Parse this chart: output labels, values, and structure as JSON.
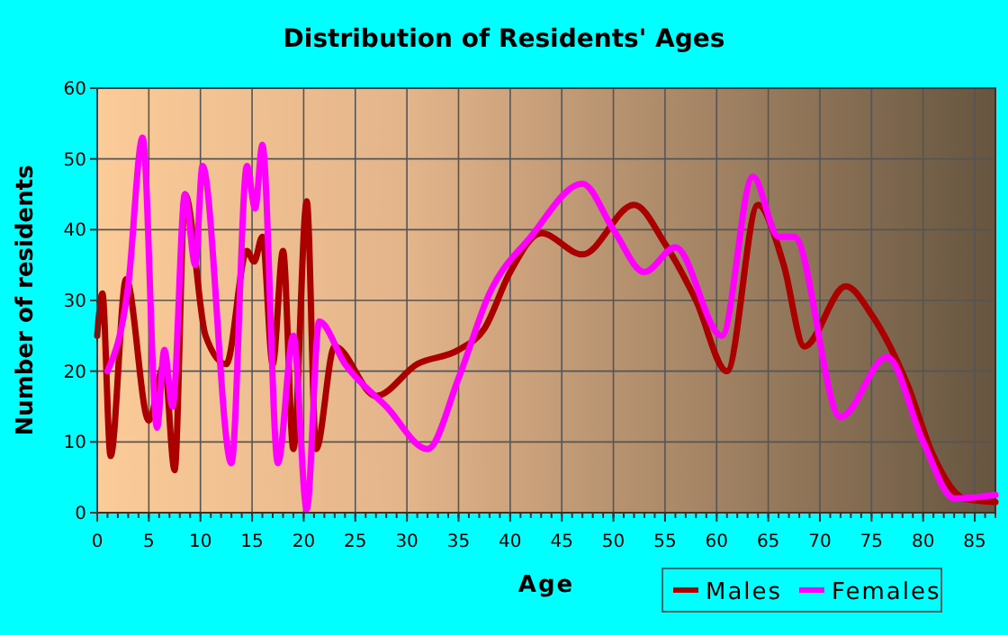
{
  "chart_data": {
    "type": "line",
    "title": "Distribution of Residents' Ages",
    "xlabel": "Age",
    "ylabel": "Number of residents",
    "xlim": [
      0,
      87
    ],
    "xticks": [
      0,
      5,
      10,
      15,
      20,
      25,
      30,
      35,
      40,
      45,
      50,
      55,
      60,
      65,
      70,
      75,
      80,
      85
    ],
    "ylim": [
      0,
      60
    ],
    "yticks": [
      0,
      10,
      20,
      30,
      40,
      50,
      60
    ],
    "grid": true,
    "legend": "bottom right",
    "marker": "none",
    "series": [
      {
        "name": "Males",
        "color": "#aa0000",
        "x": [
          0,
          0.5,
          1.3,
          2.8,
          5,
          6.5,
          7.5,
          8.5,
          10.5,
          12.5,
          14.5,
          15.2,
          16,
          17,
          18,
          19,
          20.3,
          21.2,
          23,
          27,
          31,
          35,
          37.5,
          40,
          43,
          47,
          52,
          55,
          58,
          61,
          64,
          66.5,
          68.5,
          72.5,
          75,
          78.5,
          81,
          84,
          87
        ],
        "values": [
          25,
          31,
          8,
          33,
          13,
          21,
          6,
          45,
          25,
          21,
          37,
          35.5,
          39,
          21,
          37,
          9,
          44,
          9,
          23.5,
          16.5,
          21,
          23,
          26,
          34,
          39.5,
          36.5,
          43.5,
          38,
          30,
          20,
          43.5,
          35,
          23.5,
          32,
          28,
          18,
          8,
          2,
          1.5
        ]
      },
      {
        "name": "Females",
        "color": "#ff00ff",
        "x": [
          1,
          3,
          4.4,
          5.8,
          6.5,
          7.3,
          8.5,
          9.5,
          10.2,
          13,
          14.5,
          15.3,
          16,
          17.5,
          19,
          20.3,
          21.5,
          24,
          28,
          32,
          35,
          38,
          42,
          47,
          50,
          53,
          56,
          60.5,
          63.5,
          66,
          67.5,
          72,
          76.5,
          80,
          83,
          87
        ],
        "values": [
          20,
          32,
          53,
          12,
          23,
          15,
          45,
          35,
          49,
          7,
          49,
          43,
          52,
          7,
          25,
          0.5,
          27,
          21,
          15,
          9,
          19,
          31,
          39,
          46.5,
          40,
          34,
          37.5,
          25,
          47.5,
          39,
          39,
          13.5,
          22,
          10,
          2,
          2.5
        ]
      }
    ]
  }
}
